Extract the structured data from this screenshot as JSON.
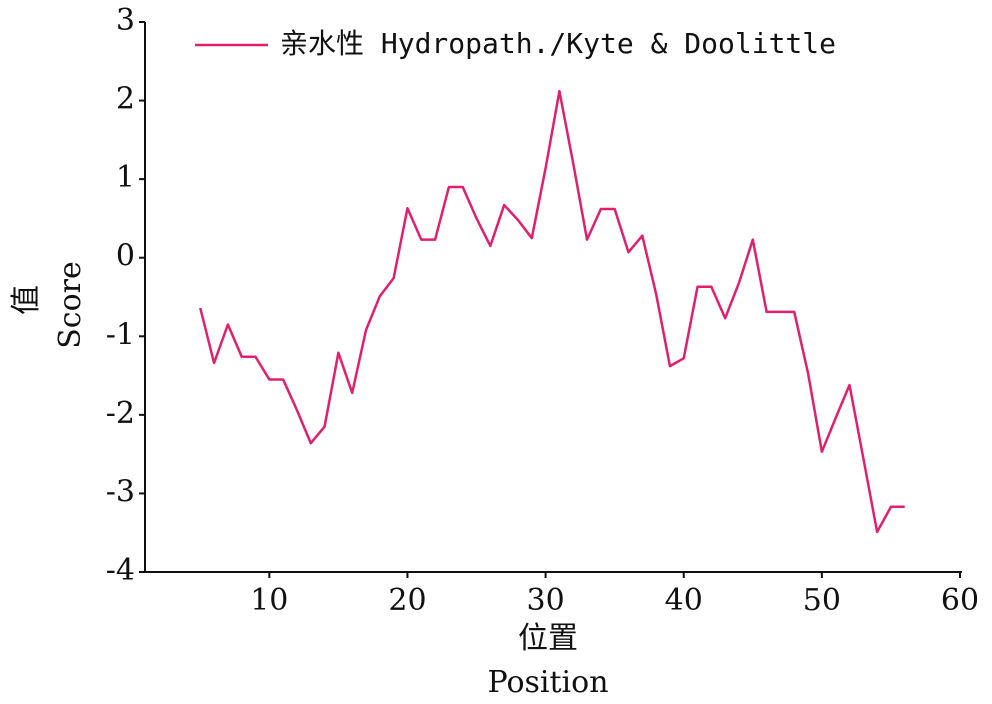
{
  "chart_data": {
    "type": "line",
    "x_label": "位置",
    "x_label_en": "Position",
    "y_label": "值",
    "y_label_en": "Score",
    "x": [
      5,
      6,
      7,
      8,
      9,
      10,
      11,
      12,
      13,
      14,
      15,
      16,
      17,
      18,
      19,
      20,
      21,
      22,
      23,
      24,
      25,
      26,
      27,
      28,
      29,
      30,
      31,
      32,
      33,
      34,
      35,
      36,
      37,
      38,
      39,
      40,
      41,
      42,
      43,
      44,
      45,
      46,
      47,
      48,
      49,
      50,
      51,
      52,
      53,
      54,
      55,
      56
    ],
    "series": [
      {
        "name": "亲水性 Hydropath./Kyte & Doolittle",
        "color": "#e0206e",
        "values": [
          -0.64,
          -1.34,
          -0.85,
          -1.26,
          -1.26,
          -1.55,
          -1.55,
          -1.94,
          -2.36,
          -2.15,
          -1.21,
          -1.72,
          -0.92,
          -0.49,
          -0.26,
          0.63,
          0.23,
          0.23,
          0.9,
          0.9,
          0.5,
          0.15,
          0.67,
          0.48,
          0.25,
          1.14,
          2.12,
          1.2,
          0.23,
          0.62,
          0.62,
          0.07,
          0.28,
          -0.46,
          -1.38,
          -1.28,
          -0.37,
          -0.37,
          -0.77,
          -0.32,
          0.23,
          -0.69,
          -0.69,
          -0.69,
          -1.47,
          -2.47,
          -2.04,
          -1.62,
          -2.55,
          -3.49,
          -3.17,
          -3.17
        ]
      }
    ],
    "xlim": [
      1,
      60
    ],
    "xticks": [
      10,
      20,
      30,
      40,
      50,
      60
    ],
    "ylim": [
      -4,
      3
    ],
    "yticks": [
      -4,
      -3,
      -2,
      -1,
      0,
      1,
      2,
      3
    ],
    "grid": false
  }
}
